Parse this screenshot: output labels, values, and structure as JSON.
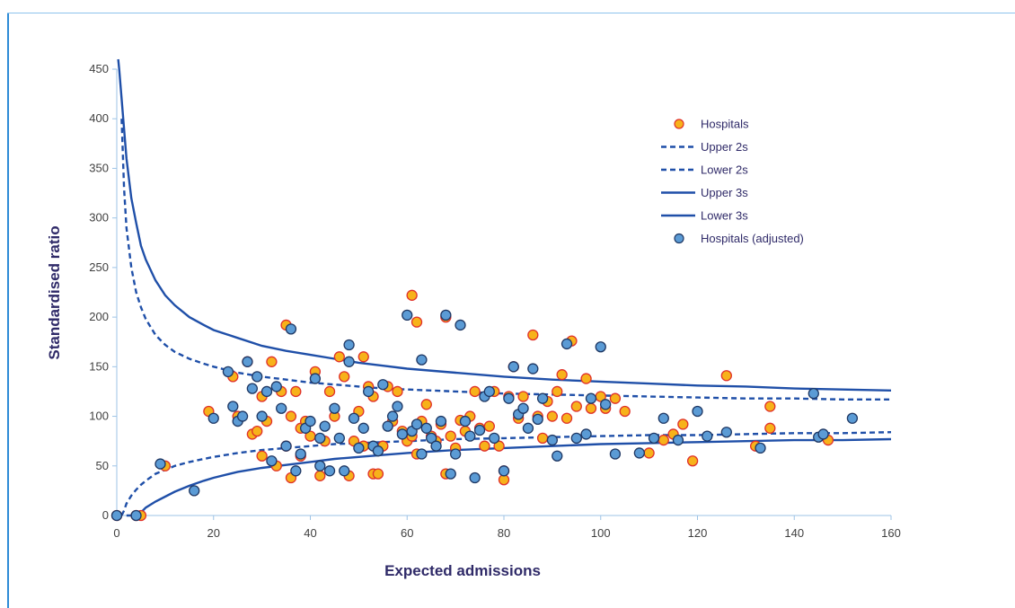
{
  "colors": {
    "frame": "#2e8bd6",
    "line": "#1f4fa8",
    "hospitals_fill": "#f7b21a",
    "hospitals_stroke": "#e0312a",
    "adjusted_fill": "#5b9bd5",
    "adjusted_stroke": "#1f3864"
  },
  "chart_data": {
    "type": "scatter",
    "xlabel": "Expected admissions",
    "ylabel": "Standardised ratio",
    "xlim": [
      0,
      160
    ],
    "ylim": [
      0,
      450
    ],
    "xticks": [
      0,
      20,
      40,
      60,
      80,
      100,
      120,
      140,
      160
    ],
    "yticks": [
      0,
      50,
      100,
      150,
      200,
      250,
      300,
      350,
      400,
      450
    ],
    "grid": false,
    "legend_position": "top-right",
    "legend": [
      "Hospitals",
      "Upper 2s",
      "Lower 2s",
      "Upper 3s",
      "Lower 3s",
      "Hospitals (adjusted)"
    ],
    "control_limits": {
      "x": [
        0.3,
        0.5,
        1,
        1.5,
        2,
        3,
        4,
        5,
        6,
        8,
        10,
        12,
        15,
        18,
        20,
        25,
        30,
        35,
        40,
        45,
        50,
        55,
        60,
        70,
        80,
        90,
        100,
        110,
        120,
        130,
        140,
        150,
        160
      ],
      "upper_2s": [
        null,
        null,
        400,
        330,
        290,
        250,
        225,
        210,
        198,
        182,
        172,
        165,
        158,
        153,
        150,
        144,
        140,
        137,
        134,
        132,
        130,
        128,
        127,
        125,
        123,
        122,
        121,
        120,
        119,
        118,
        118,
        117,
        117
      ],
      "lower_2s": [
        null,
        null,
        0,
        5,
        12,
        20,
        26,
        31,
        35,
        42,
        46,
        50,
        54,
        57,
        59,
        63,
        66,
        68,
        70,
        72,
        73,
        74,
        75,
        77,
        78,
        79,
        80,
        81,
        81,
        82,
        83,
        83,
        84
      ],
      "upper_3s": [
        460,
        450,
        420,
        390,
        360,
        320,
        295,
        272,
        258,
        237,
        222,
        212,
        200,
        192,
        187,
        179,
        171,
        166,
        162,
        158,
        154,
        151,
        148,
        144,
        140,
        137,
        135,
        133,
        131,
        130,
        128,
        127,
        126
      ],
      "lower_3s": [
        null,
        null,
        null,
        null,
        0,
        0,
        0,
        3,
        8,
        14,
        19,
        24,
        30,
        35,
        38,
        44,
        48,
        51,
        54,
        57,
        59,
        61,
        63,
        66,
        68,
        70,
        72,
        73,
        74,
        75,
        76,
        76,
        77
      ]
    },
    "series": [
      {
        "name": "Hospitals",
        "x": [
          0,
          4,
          5,
          10,
          19,
          24,
          25,
          27,
          28,
          29,
          30,
          30,
          31,
          32,
          33,
          34,
          35,
          35,
          36,
          36,
          37,
          38,
          38,
          39,
          40,
          41,
          42,
          43,
          44,
          45,
          46,
          47,
          48,
          49,
          50,
          51,
          51,
          52,
          53,
          53,
          54,
          55,
          56,
          57,
          58,
          59,
          60,
          61,
          61,
          62,
          62,
          63,
          64,
          65,
          66,
          67,
          68,
          68,
          69,
          70,
          71,
          72,
          73,
          74,
          75,
          76,
          77,
          78,
          79,
          80,
          80,
          81,
          82,
          83,
          84,
          86,
          87,
          88,
          89,
          90,
          91,
          92,
          93,
          94,
          95,
          97,
          98,
          100,
          101,
          103,
          105,
          110,
          113,
          115,
          117,
          119,
          126,
          132,
          135,
          135,
          147
        ],
        "y": [
          0,
          0,
          0,
          50,
          105,
          140,
          100,
          155,
          82,
          85,
          120,
          60,
          95,
          155,
          50,
          125,
          192,
          70,
          100,
          38,
          125,
          60,
          88,
          95,
          80,
          145,
          40,
          75,
          125,
          100,
          160,
          140,
          40,
          75,
          105,
          160,
          70,
          130,
          42,
          120,
          42,
          70,
          130,
          95,
          125,
          85,
          75,
          80,
          222,
          195,
          62,
          95,
          112,
          80,
          75,
          92,
          200,
          42,
          80,
          68,
          96,
          85,
          100,
          125,
          88,
          70,
          90,
          125,
          70,
          45,
          36,
          120,
          150,
          98,
          120,
          182,
          100,
          78,
          115,
          100,
          125,
          142,
          98,
          176,
          110,
          138,
          108,
          120,
          108,
          118,
          105,
          63,
          76,
          82,
          92,
          55,
          141,
          70,
          88,
          110,
          76
        ]
      },
      {
        "name": "Hospitals (adjusted)",
        "x": [
          0,
          4,
          9,
          16,
          20,
          23,
          24,
          25,
          26,
          27,
          28,
          29,
          30,
          31,
          32,
          33,
          34,
          35,
          36,
          37,
          38,
          39,
          40,
          41,
          42,
          42,
          43,
          44,
          45,
          46,
          47,
          48,
          48,
          49,
          50,
          51,
          52,
          53,
          54,
          55,
          56,
          57,
          58,
          59,
          60,
          61,
          62,
          63,
          63,
          64,
          65,
          66,
          67,
          68,
          69,
          70,
          71,
          72,
          73,
          74,
          75,
          76,
          77,
          78,
          80,
          81,
          82,
          83,
          84,
          85,
          86,
          87,
          88,
          90,
          91,
          93,
          95,
          97,
          98,
          100,
          101,
          103,
          108,
          111,
          113,
          116,
          120,
          122,
          126,
          133,
          144,
          145,
          146,
          152
        ],
        "y": [
          0,
          0,
          52,
          25,
          98,
          145,
          110,
          95,
          100,
          155,
          128,
          140,
          100,
          125,
          55,
          130,
          108,
          70,
          188,
          45,
          62,
          88,
          95,
          138,
          78,
          50,
          90,
          45,
          108,
          78,
          45,
          155,
          172,
          98,
          68,
          88,
          125,
          70,
          65,
          132,
          90,
          100,
          110,
          82,
          202,
          85,
          92,
          157,
          62,
          88,
          78,
          70,
          95,
          202,
          42,
          62,
          192,
          95,
          80,
          38,
          86,
          120,
          125,
          78,
          45,
          118,
          150,
          102,
          108,
          88,
          148,
          97,
          118,
          76,
          60,
          173,
          78,
          82,
          118,
          170,
          112,
          62,
          63,
          78,
          98,
          76,
          105,
          80,
          84,
          68,
          123,
          79,
          82,
          98
        ]
      }
    ]
  }
}
